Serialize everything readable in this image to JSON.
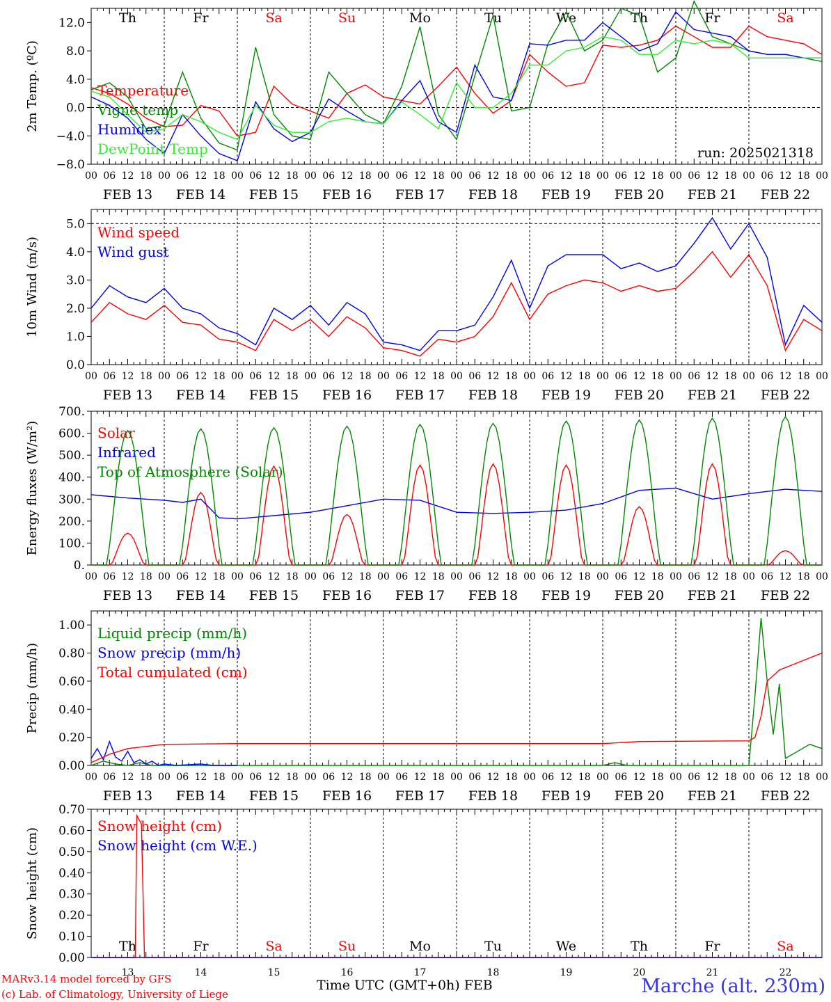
{
  "footer": {
    "credit_line1": "MARv3.14 model forced by GFS",
    "credit_line2": "(c) Lab. of Climatology, University of Liege",
    "x_title": "Time UTC (GMT+0h) FEB",
    "station": "Marche (alt. 230m)"
  },
  "colors": {
    "red": "#ff0000",
    "green": "#008800",
    "blue": "#0000ee",
    "lightgreen": "#33ee33",
    "black": "#000000"
  },
  "days": [
    {
      "dow": "Th",
      "date": "FEB 13",
      "num": "13",
      "weekend": false
    },
    {
      "dow": "Fr",
      "date": "FEB 14",
      "num": "14",
      "weekend": false
    },
    {
      "dow": "Sa",
      "date": "FEB 15",
      "num": "15",
      "weekend": true
    },
    {
      "dow": "Su",
      "date": "FEB 16",
      "num": "16",
      "weekend": true
    },
    {
      "dow": "Mo",
      "date": "FEB 17",
      "num": "17",
      "weekend": false
    },
    {
      "dow": "Tu",
      "date": "FEB 18",
      "num": "18",
      "weekend": false
    },
    {
      "dow": "We",
      "date": "FEB 19",
      "num": "19",
      "weekend": false
    },
    {
      "dow": "Th",
      "date": "FEB 20",
      "num": "20",
      "weekend": false
    },
    {
      "dow": "Fr",
      "date": "FEB 21",
      "num": "21",
      "weekend": false
    },
    {
      "dow": "Sa",
      "date": "FEB 22",
      "num": "22",
      "weekend": true
    }
  ],
  "hour_labels": [
    "00",
    "06",
    "12",
    "18"
  ],
  "chart_data": [
    {
      "type": "line",
      "id": "temp",
      "ylabel": "2m Temp. (ºC)",
      "ylim": [
        -8,
        14
      ],
      "yticks": [
        "12.0",
        "8.0",
        "4.0",
        "0.0",
        "−4.0",
        "−8.0"
      ],
      "ytick_values": [
        12,
        8,
        4,
        0,
        -4,
        -8
      ],
      "ref_lines": [
        0
      ],
      "annotation": "run: 2025021318",
      "show_dow": true,
      "x_hours": [
        0,
        6,
        12,
        18,
        24,
        30,
        36,
        42,
        48,
        54,
        60,
        66,
        72,
        78,
        84,
        90,
        96,
        102,
        108,
        114,
        120,
        126,
        132,
        138,
        144,
        150,
        156,
        162,
        168,
        174,
        180,
        186,
        192,
        198,
        204,
        210,
        216,
        222,
        228,
        234,
        240
      ],
      "series": [
        {
          "name": "Temperature",
          "color": "red",
          "values": [
            2.8,
            2.0,
            0.5,
            -1.5,
            -2.7,
            -2.5,
            0.3,
            -0.5,
            -4.0,
            -3.5,
            3.0,
            0.5,
            -0.5,
            -1.5,
            2.0,
            3.2,
            1.5,
            1.0,
            0.5,
            3.0,
            5.7,
            2.0,
            -0.8,
            1.0,
            7.5,
            5.0,
            3.0,
            3.5,
            8.8,
            8.5,
            8.8,
            9.5,
            11.5,
            10.0,
            8.5,
            8.5,
            11.5,
            10.0,
            9.5,
            9.0,
            7.5
          ]
        },
        {
          "name": "Vigne temp",
          "color": "green",
          "values": [
            2.5,
            3.5,
            1.5,
            -3.0,
            -2.5,
            5.0,
            -1.5,
            -5.0,
            -6.0,
            8.5,
            -1.0,
            -4.0,
            -4.5,
            5.0,
            2.0,
            -1.0,
            -2.3,
            3.0,
            11.4,
            -1.0,
            -4.5,
            4.5,
            13.0,
            -0.5,
            0.0,
            9.0,
            13.5,
            8.0,
            9.5,
            14.0,
            13.0,
            5.0,
            7.0,
            15.0,
            10.0,
            9.0,
            8.0,
            7.5,
            7.5,
            7.0,
            6.5
          ]
        },
        {
          "name": "Humidex",
          "color": "blue",
          "values": [
            1.5,
            0.3,
            -1.5,
            -4.5,
            -6.5,
            -1.0,
            -4.0,
            -6.5,
            -7.5,
            0.8,
            -3.0,
            -4.8,
            -3.5,
            1.2,
            -0.5,
            -2.0,
            -2.3,
            1.0,
            3.8,
            -2.0,
            -3.5,
            6.0,
            1.5,
            1.0,
            9.0,
            8.8,
            9.5,
            9.5,
            12.0,
            10.0,
            8.0,
            9.0,
            13.5,
            11.0,
            10.5,
            10.0,
            8.0,
            7.5,
            7.5,
            7.0,
            7.0
          ]
        },
        {
          "name": "DewPoint Temp",
          "color": "lightgreen",
          "values": [
            2.3,
            1.5,
            -1.0,
            -3.5,
            -3.0,
            -1.0,
            -2.0,
            -3.5,
            -4.5,
            0.3,
            -2.5,
            -3.5,
            -3.5,
            -2.0,
            -1.5,
            -2.0,
            -2.3,
            0.8,
            -1.0,
            -3.0,
            3.5,
            0.0,
            0.0,
            2.0,
            6.0,
            6.0,
            8.0,
            8.5,
            10.0,
            9.5,
            7.5,
            7.5,
            9.5,
            9.0,
            9.5,
            9.0,
            7.0,
            7.0,
            7.0,
            7.0,
            7.0
          ]
        }
      ]
    },
    {
      "type": "line",
      "id": "wind",
      "ylabel": "10m Wind (m/s)",
      "ylim": [
        0,
        5.5
      ],
      "yticks": [
        "5.0",
        "4.0",
        "3.0",
        "2.0",
        "1.0",
        "0.0"
      ],
      "ytick_values": [
        5,
        4,
        3,
        2,
        1,
        0
      ],
      "ref_lines": [
        5
      ],
      "show_dow": false,
      "x_hours": [
        0,
        6,
        12,
        18,
        24,
        30,
        36,
        42,
        48,
        54,
        60,
        66,
        72,
        78,
        84,
        90,
        96,
        102,
        108,
        114,
        120,
        126,
        132,
        138,
        144,
        150,
        156,
        162,
        168,
        174,
        180,
        186,
        192,
        198,
        204,
        210,
        216,
        222,
        228,
        234,
        240
      ],
      "series": [
        {
          "name": "Wind speed",
          "color": "red",
          "values": [
            1.5,
            2.2,
            1.8,
            1.6,
            2.1,
            1.5,
            1.4,
            0.9,
            0.8,
            0.5,
            1.6,
            1.2,
            1.6,
            1.0,
            1.7,
            1.3,
            0.6,
            0.5,
            0.3,
            0.9,
            0.8,
            1.0,
            1.7,
            2.9,
            1.6,
            2.5,
            2.8,
            3.0,
            2.9,
            2.6,
            2.8,
            2.6,
            2.7,
            3.3,
            4.0,
            3.1,
            3.9,
            2.8,
            0.5,
            1.6,
            1.2
          ]
        },
        {
          "name": "Wind gust",
          "color": "blue",
          "values": [
            2.0,
            2.8,
            2.4,
            2.2,
            2.7,
            2.0,
            1.8,
            1.3,
            1.1,
            0.7,
            2.0,
            1.6,
            2.1,
            1.4,
            2.2,
            1.8,
            0.8,
            0.7,
            0.5,
            1.2,
            1.2,
            1.4,
            2.4,
            3.7,
            2.0,
            3.5,
            3.9,
            3.9,
            3.9,
            3.4,
            3.6,
            3.3,
            3.5,
            4.3,
            5.2,
            4.1,
            5.0,
            3.8,
            0.7,
            2.1,
            1.5
          ]
        }
      ]
    },
    {
      "type": "line",
      "id": "energy",
      "ylabel": "Energy fluxes (W/m²)",
      "ylim": [
        0,
        700
      ],
      "yticks": [
        "700.",
        "600.",
        "500.",
        "400.",
        "300.",
        "200.",
        "100.",
        "0."
      ],
      "ytick_values": [
        700,
        600,
        500,
        400,
        300,
        200,
        100,
        0
      ],
      "ref_lines": [],
      "show_dow": false,
      "daily_peaks": {
        "solar": [
          145,
          330,
          450,
          230,
          455,
          460,
          455,
          265,
          460,
          65
        ],
        "toa": [
          612,
          620,
          625,
          632,
          640,
          645,
          655,
          660,
          668,
          675
        ]
      },
      "series": [
        {
          "name": "Solar",
          "color": "red"
        },
        {
          "name": "Infrared",
          "color": "blue",
          "x_hours": [
            0,
            12,
            24,
            30,
            36,
            42,
            48,
            60,
            72,
            84,
            96,
            108,
            120,
            132,
            144,
            156,
            168,
            180,
            186,
            192,
            204,
            216,
            228,
            240
          ],
          "values": [
            320,
            305,
            295,
            285,
            300,
            215,
            210,
            225,
            240,
            270,
            300,
            295,
            240,
            235,
            240,
            250,
            280,
            340,
            345,
            350,
            300,
            325,
            345,
            335
          ]
        },
        {
          "name": "Top of Atmosphere (Solar)",
          "color": "green"
        }
      ]
    },
    {
      "type": "line",
      "id": "precip",
      "ylabel": "Precip (mm/h)",
      "ylim": [
        0,
        1.1
      ],
      "yticks": [
        "1.00",
        "0.80",
        "0.60",
        "0.40",
        "0.20",
        "0.00"
      ],
      "ytick_values": [
        1.0,
        0.8,
        0.6,
        0.4,
        0.2,
        0.0
      ],
      "ref_lines": [],
      "show_dow": false,
      "series": [
        {
          "name": "Liquid precip (mm/h)",
          "color": "green",
          "x_hours": [
            0,
            4,
            8,
            12,
            16,
            20,
            24,
            168,
            172,
            176,
            186,
            216,
            218,
            220,
            222,
            224,
            226,
            228,
            232,
            236,
            240
          ],
          "values": [
            0.0,
            0.03,
            0.01,
            0.0,
            0.02,
            0.0,
            0.0,
            0.0,
            0.02,
            0.0,
            0.0,
            0.0,
            0.5,
            1.05,
            0.6,
            0.22,
            0.58,
            0.05,
            0.1,
            0.15,
            0.12
          ]
        },
        {
          "name": "Snow precip (mm/h)",
          "color": "blue",
          "x_hours": [
            0,
            2,
            4,
            6,
            8,
            10,
            12,
            14,
            16,
            18,
            20,
            22,
            24,
            28,
            36,
            40,
            48
          ],
          "values": [
            0.05,
            0.12,
            0.04,
            0.17,
            0.06,
            0.03,
            0.1,
            0.02,
            0.04,
            0.01,
            0.03,
            0.0,
            0.01,
            0.0,
            0.01,
            0.0,
            0.0
          ]
        },
        {
          "name": "Total cumulated (cm)",
          "color": "red",
          "x_hours": [
            0,
            6,
            12,
            24,
            48,
            168,
            180,
            216,
            218,
            220,
            222,
            226,
            240
          ],
          "values": [
            0.02,
            0.08,
            0.12,
            0.15,
            0.155,
            0.155,
            0.17,
            0.175,
            0.2,
            0.35,
            0.6,
            0.68,
            0.8
          ]
        }
      ]
    },
    {
      "type": "line",
      "id": "snow",
      "ylabel": "Snow height (cm)",
      "ylim": [
        0,
        0.7
      ],
      "yticks": [
        "0.70",
        "0.60",
        "0.50",
        "0.40",
        "0.30",
        "0.20",
        "0.10",
        "0.00"
      ],
      "ytick_values": [
        0.7,
        0.6,
        0.5,
        0.4,
        0.3,
        0.2,
        0.1,
        0.0
      ],
      "ref_lines": [],
      "show_dow_bottom": true,
      "series": [
        {
          "name": "Snow height (cm)",
          "color": "red",
          "x_hours": [
            0,
            14.5,
            15,
            16.5,
            17.5,
            18,
            240
          ],
          "values": [
            0,
            0,
            0.67,
            0.63,
            0,
            0,
            0
          ]
        },
        {
          "name": "Snow height (cm W.E.)",
          "color": "blue",
          "x_hours": [
            0,
            240
          ],
          "values": [
            0,
            0
          ]
        }
      ]
    }
  ]
}
